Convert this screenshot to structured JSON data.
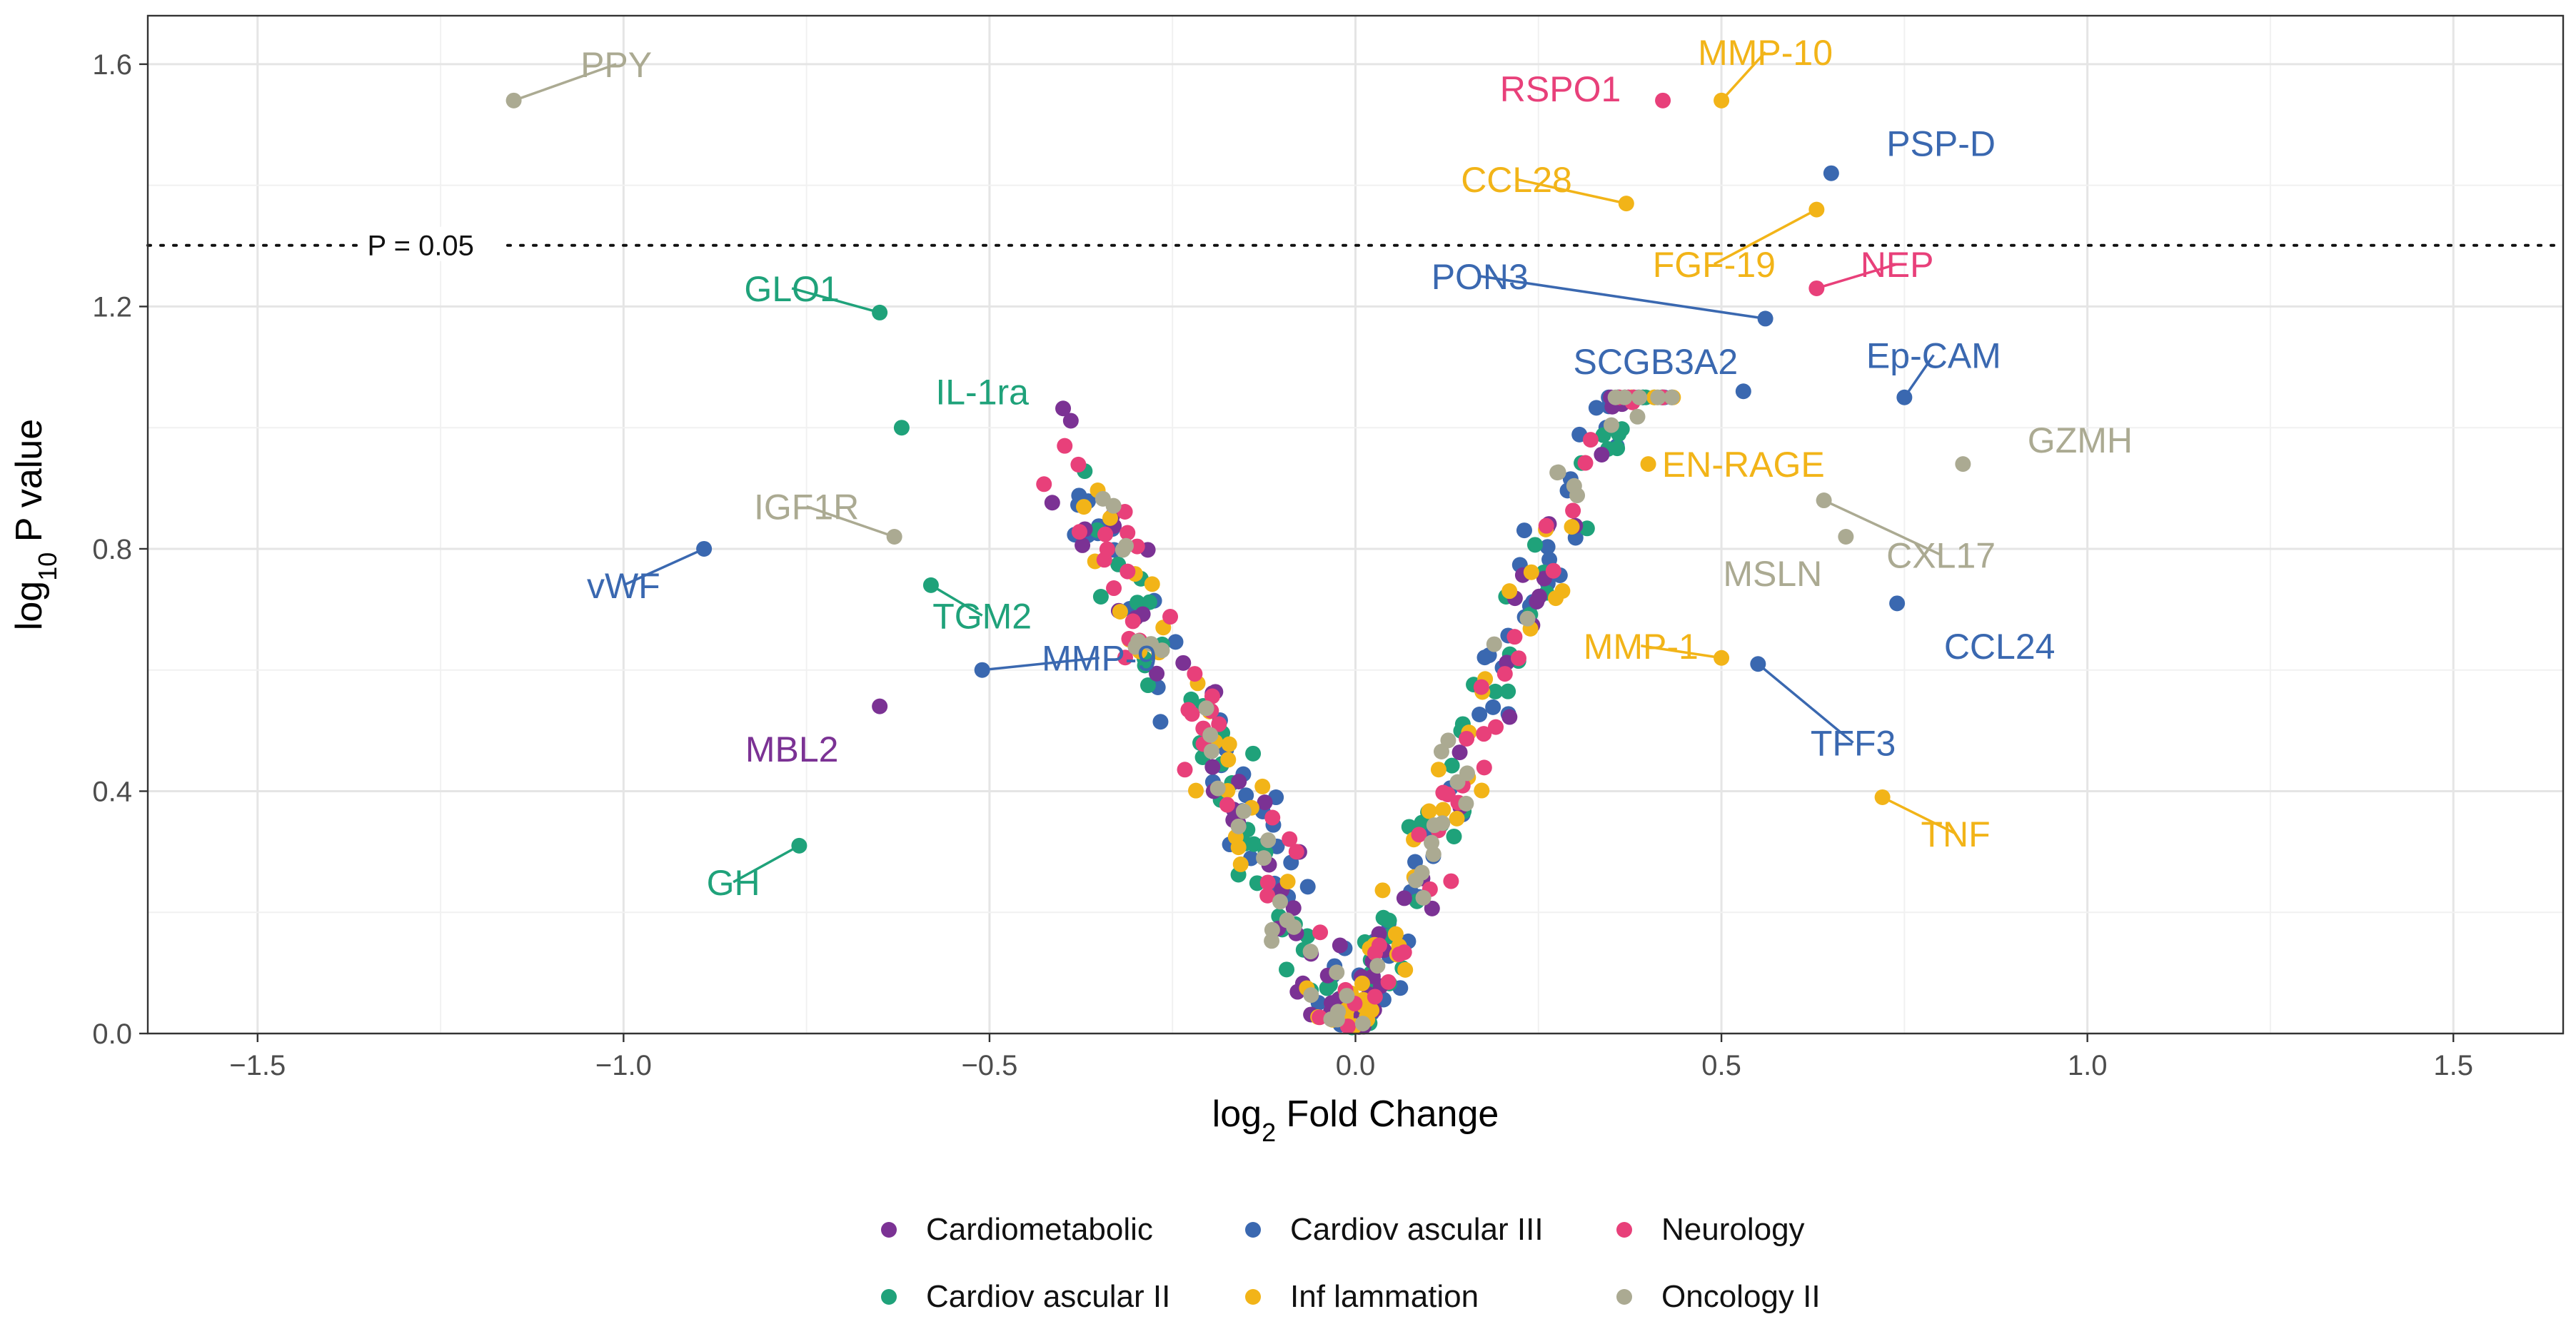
{
  "chart_data": {
    "type": "scatter",
    "title": "",
    "xlabel_main": "log",
    "xlabel_sub": "2",
    "xlabel_rest": " Fold Change",
    "ylabel_main": "log",
    "ylabel_sub": "10",
    "ylabel_rest": " P value",
    "xlim": [
      -1.65,
      1.65
    ],
    "ylim": [
      0,
      1.68
    ],
    "x_ticks": [
      -1.5,
      -1.0,
      -0.5,
      0.0,
      0.5,
      1.0,
      1.5
    ],
    "x_tick_labels": [
      "−1.5",
      "−1.0",
      "−0.5",
      "0.0",
      "0.5",
      "1.0",
      "1.5"
    ],
    "y_ticks": [
      0.0,
      0.4,
      0.8,
      1.2,
      1.6
    ],
    "y_tick_labels": [
      "0.0",
      "0.4",
      "0.8",
      "1.2",
      "1.6"
    ],
    "grid": true,
    "threshold": {
      "y": 1.301,
      "label": "P = 0.05",
      "label_x": -1.35
    },
    "legend_position": "bottom",
    "colors": {
      "Cardiometabolic": "#7B3294",
      "Cardiovascular III": "#3A68B0",
      "Neurology": "#E8407A",
      "Cardiovascular II": "#1FA27A",
      "Inflammation": "#F2B418",
      "Oncology II": "#ABAA92"
    },
    "legend": [
      {
        "name": "Cardiometabolic",
        "label": "Cardiometabolic"
      },
      {
        "name": "Cardiovascular III",
        "label": "Cardiov ascular III"
      },
      {
        "name": "Neurology",
        "label": "Neurology"
      },
      {
        "name": "Cardiovascular II",
        "label": "Cardiov ascular II"
      },
      {
        "name": "Inflammation",
        "label": "Inf lammation"
      },
      {
        "name": "Oncology II",
        "label": "Oncology  II"
      }
    ],
    "labeled_points": [
      {
        "label": "PPY",
        "x": -1.15,
        "y": 1.54,
        "series": "Oncology II",
        "lx": -1.01,
        "ly": 1.6,
        "anchor": "middle",
        "line": true
      },
      {
        "label": "RSPO1",
        "x": 0.42,
        "y": 1.54,
        "series": "Neurology",
        "lx": 0.28,
        "ly": 1.56,
        "anchor": "middle",
        "line": false
      },
      {
        "label": "MMP-10",
        "x": 0.5,
        "y": 1.54,
        "series": "Inflammation",
        "lx": 0.56,
        "ly": 1.62,
        "anchor": "middle",
        "line": true
      },
      {
        "label": "PSP-D",
        "x": 0.65,
        "y": 1.42,
        "series": "Cardiovascular III",
        "lx": 0.8,
        "ly": 1.47,
        "anchor": "middle",
        "line": false
      },
      {
        "label": "CCL28",
        "x": 0.37,
        "y": 1.37,
        "series": "Inflammation",
        "lx": 0.22,
        "ly": 1.41,
        "anchor": "middle",
        "line": true
      },
      {
        "label": "FGF-19",
        "x": 0.63,
        "y": 1.36,
        "series": "Inflammation",
        "lx": 0.49,
        "ly": 1.27,
        "anchor": "middle",
        "line": true
      },
      {
        "label": "NEP",
        "x": 0.63,
        "y": 1.23,
        "series": "Neurology",
        "lx": 0.74,
        "ly": 1.27,
        "anchor": "middle",
        "line": true
      },
      {
        "label": "PON3",
        "x": 0.56,
        "y": 1.18,
        "series": "Cardiovascular III",
        "lx": 0.17,
        "ly": 1.25,
        "anchor": "middle",
        "line": true
      },
      {
        "label": "SCGB3A2",
        "x": 0.53,
        "y": 1.06,
        "series": "Cardiovascular III",
        "lx": 0.41,
        "ly": 1.11,
        "anchor": "middle",
        "line": false
      },
      {
        "label": "Ep-CAM",
        "x": 0.75,
        "y": 1.05,
        "series": "Cardiovascular III",
        "lx": 0.79,
        "ly": 1.12,
        "anchor": "middle",
        "line": true
      },
      {
        "label": "GZMH",
        "x": 0.83,
        "y": 0.94,
        "series": "Oncology II",
        "lx": 0.99,
        "ly": 0.98,
        "anchor": "middle",
        "line": false
      },
      {
        "label": "EN-RAGE",
        "x": 0.4,
        "y": 0.94,
        "series": "Inflammation",
        "lx": 0.53,
        "ly": 0.94,
        "anchor": "middle",
        "line": false
      },
      {
        "label": "CXL17",
        "x": 0.64,
        "y": 0.88,
        "series": "Oncology II",
        "lx": 0.8,
        "ly": 0.79,
        "anchor": "middle",
        "line": true
      },
      {
        "label": "MSLN",
        "x": 0.67,
        "y": 0.82,
        "series": "Oncology II",
        "lx": 0.57,
        "ly": 0.76,
        "anchor": "middle",
        "line": false
      },
      {
        "label": "CCL24",
        "x": 0.74,
        "y": 0.71,
        "series": "Cardiovascular III",
        "lx": 0.88,
        "ly": 0.64,
        "anchor": "middle",
        "line": false
      },
      {
        "label": "MMP-1",
        "x": 0.5,
        "y": 0.62,
        "series": "Inflammation",
        "lx": 0.39,
        "ly": 0.64,
        "anchor": "middle",
        "line": true
      },
      {
        "label": "TFF3",
        "x": 0.55,
        "y": 0.61,
        "series": "Cardiovascular III",
        "lx": 0.68,
        "ly": 0.48,
        "anchor": "middle",
        "line": true
      },
      {
        "label": "TNF",
        "x": 0.72,
        "y": 0.39,
        "series": "Inflammation",
        "lx": 0.82,
        "ly": 0.33,
        "anchor": "middle",
        "line": true
      },
      {
        "label": "GLO1",
        "x": -0.65,
        "y": 1.19,
        "series": "Cardiovascular II",
        "lx": -0.77,
        "ly": 1.23,
        "anchor": "middle",
        "line": true
      },
      {
        "label": "IL-1ra",
        "x": -0.62,
        "y": 1.0,
        "series": "Cardiovascular II",
        "lx": -0.51,
        "ly": 1.06,
        "anchor": "middle",
        "line": false
      },
      {
        "label": "IGF1R",
        "x": -0.63,
        "y": 0.82,
        "series": "Oncology II",
        "lx": -0.75,
        "ly": 0.87,
        "anchor": "middle",
        "line": true
      },
      {
        "label": "vWF",
        "x": -0.89,
        "y": 0.8,
        "series": "Cardiovascular III",
        "lx": -1.0,
        "ly": 0.74,
        "anchor": "middle",
        "line": true
      },
      {
        "label": "TGM2",
        "x": -0.58,
        "y": 0.74,
        "series": "Cardiovascular II",
        "lx": -0.51,
        "ly": 0.69,
        "anchor": "middle",
        "line": true
      },
      {
        "label": "MMP-9",
        "x": -0.51,
        "y": 0.6,
        "series": "Cardiovascular III",
        "lx": -0.35,
        "ly": 0.62,
        "anchor": "middle",
        "line": true
      },
      {
        "label": "MBL2",
        "x": -0.65,
        "y": 0.54,
        "series": "Cardiometabolic",
        "lx": -0.77,
        "ly": 0.47,
        "anchor": "middle",
        "line": false
      },
      {
        "label": "GH",
        "x": -0.76,
        "y": 0.31,
        "series": "Cardiovascular II",
        "lx": -0.85,
        "ly": 0.25,
        "anchor": "middle",
        "line": true
      }
    ],
    "cloud": {
      "note_counts": [
        95,
        95,
        75,
        70,
        70,
        55
      ],
      "series_order": [
        "Cardiovascular III",
        "Cardiovascular II",
        "Cardiometabolic",
        "Inflammation",
        "Neurology",
        "Oncology II"
      ]
    }
  }
}
